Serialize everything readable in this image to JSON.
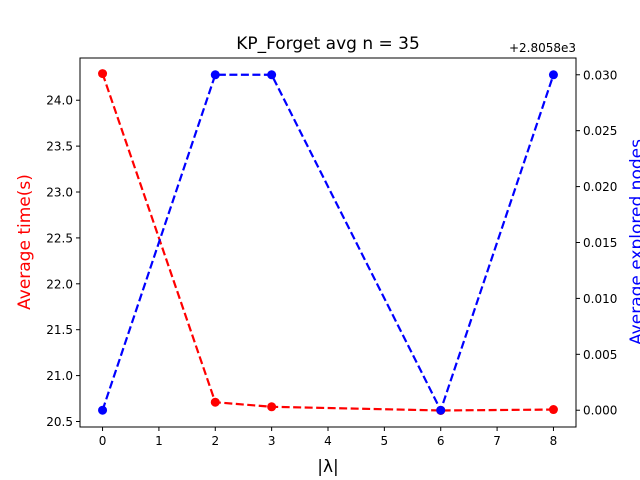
{
  "chart_data": {
    "type": "line",
    "title": "KP_Forget avg n = 35",
    "xlabel": "|λ|",
    "ylabel_left": "Average time(s)",
    "ylabel_right": "Average explored nodes",
    "right_axis_offset": "+2.8058e3",
    "x": [
      0,
      2,
      3,
      6,
      8
    ],
    "x_ticks": [
      0,
      1,
      2,
      3,
      4,
      5,
      6,
      7,
      8
    ],
    "xlim": [
      -0.4,
      8.4
    ],
    "left_ticks": [
      20.5,
      21.0,
      21.5,
      22.0,
      22.5,
      23.0,
      23.5,
      24.0
    ],
    "left_ylim": [
      20.44,
      24.46
    ],
    "right_ticks": [
      0.0,
      0.005,
      0.01,
      0.015,
      0.02,
      0.025,
      0.03
    ],
    "right_ylim": [
      -0.0015,
      0.0315
    ],
    "grid": false,
    "series": [
      {
        "axis": "left",
        "color": "#ff0000",
        "linestyle": "dashed",
        "marker": "circle",
        "values": [
          24.29,
          20.71,
          20.66,
          20.62,
          20.63
        ]
      },
      {
        "axis": "right",
        "color": "#0000ff",
        "linestyle": "dashed",
        "marker": "circle",
        "values": [
          0.0,
          0.03,
          0.03,
          0.0,
          0.03
        ]
      }
    ]
  }
}
